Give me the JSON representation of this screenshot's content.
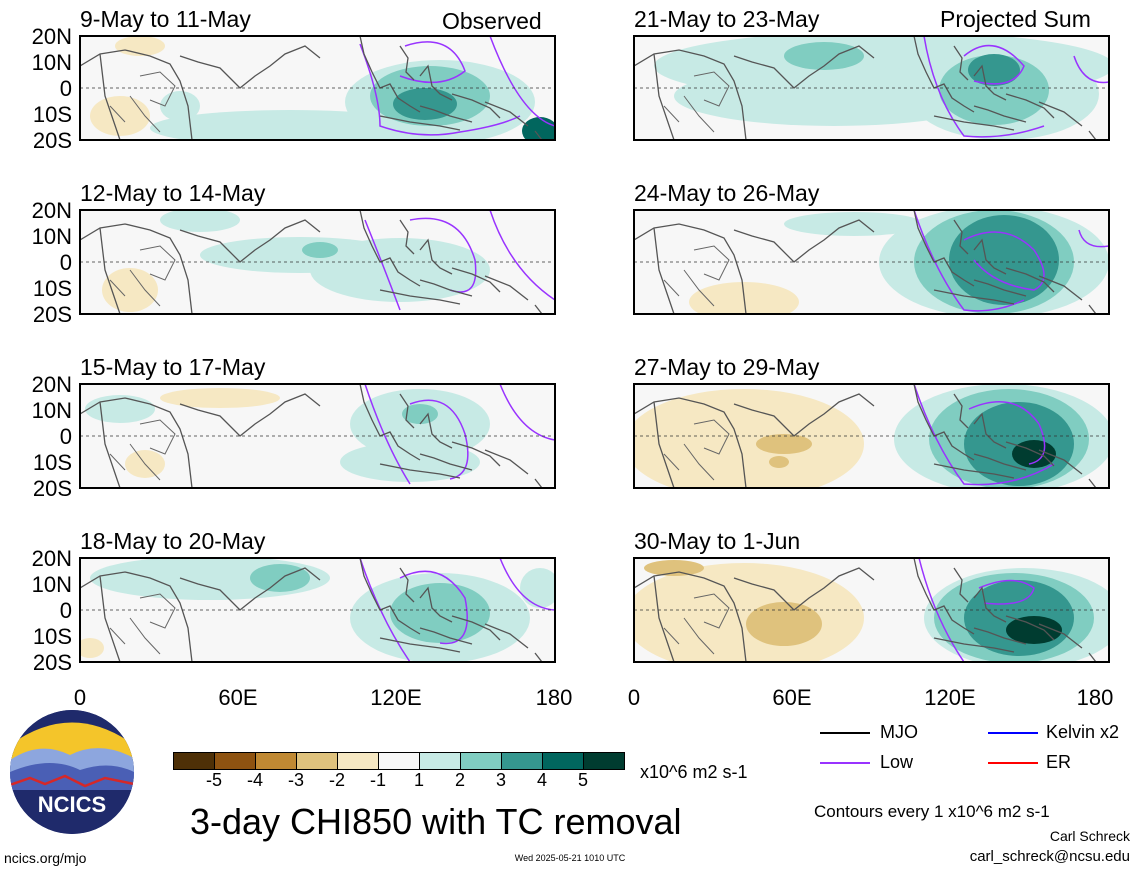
{
  "panels": [
    {
      "title": "9-May to 11-May",
      "label": "Observed"
    },
    {
      "title": "21-May to 23-May",
      "label": "Projected Sum"
    },
    {
      "title": "12-May to 14-May",
      "label": ""
    },
    {
      "title": "24-May to 26-May",
      "label": ""
    },
    {
      "title": "15-May to 17-May",
      "label": ""
    },
    {
      "title": "27-May to 29-May",
      "label": ""
    },
    {
      "title": "18-May to 20-May",
      "label": ""
    },
    {
      "title": "30-May to 1-Jun",
      "label": ""
    }
  ],
  "lat_ticks": [
    "20N",
    "10N",
    "0",
    "10S",
    "20S"
  ],
  "lon_ticks": [
    "0",
    "60E",
    "120E",
    "180"
  ],
  "colorbar": {
    "colors": [
      "#4e3007",
      "#8e5311",
      "#c08933",
      "#dfc27d",
      "#f6e8c3",
      "#f7f7f7",
      "#c7eae5",
      "#80cdc1",
      "#35978f",
      "#01665e",
      "#003c30"
    ],
    "labels": [
      "-5",
      "-4",
      "-3",
      "-2",
      "-1",
      "1",
      "2",
      "3",
      "4",
      "5"
    ],
    "units": "x10^6 m2 s-1"
  },
  "main_title": "3-day CHI850 with TC removal",
  "legend": {
    "items": [
      {
        "label": "MJO",
        "color": "#000000"
      },
      {
        "label": "Kelvin x2",
        "color": "#0000ff"
      },
      {
        "label": "Low",
        "color": "#9933ff"
      },
      {
        "label": "ER",
        "color": "#ff0000"
      }
    ],
    "contour_note": "Contours every 1 x10^6 m2 s-1"
  },
  "credit": {
    "name": "Carl Schreck",
    "email": "carl_schreck@ncsu.edu"
  },
  "footer": {
    "url": "ncics.org/mjo",
    "timestamp": "Wed 2025-05-21 1010 UTC"
  },
  "logo": {
    "text": "NCICS"
  }
}
